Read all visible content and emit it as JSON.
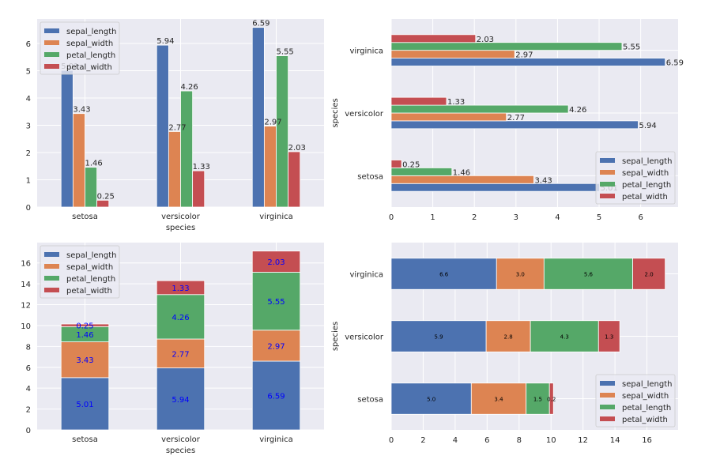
{
  "colors": {
    "sepal_length": "#4c72b0",
    "sepal_width": "#dd8452",
    "petal_length": "#55a868",
    "petal_width": "#c44e52",
    "axes_bg": "#eaeaf2",
    "grid": "#ffffff",
    "stack_label": "#0000ff"
  },
  "chart_data": [
    {
      "id": "grouped-vertical",
      "type": "bar",
      "orientation": "vertical",
      "stacked": false,
      "categories": [
        "setosa",
        "versicolor",
        "virginica"
      ],
      "series": [
        {
          "name": "sepal_length",
          "values": [
            5.01,
            5.94,
            6.59
          ]
        },
        {
          "name": "sepal_width",
          "values": [
            3.43,
            2.77,
            2.97
          ]
        },
        {
          "name": "petal_length",
          "values": [
            1.46,
            4.26,
            5.55
          ]
        },
        {
          "name": "petal_width",
          "values": [
            0.25,
            1.33,
            2.03
          ]
        }
      ],
      "value_labels": [
        [
          "5.01",
          "5.94",
          "6.59"
        ],
        [
          "3.43",
          "2.77",
          "2.97"
        ],
        [
          "1.46",
          "4.26",
          "5.55"
        ],
        [
          "0.25",
          "1.33",
          "2.03"
        ]
      ],
      "xlabel": "species",
      "ylabel": "",
      "ylim": [
        0,
        6.9
      ],
      "yticks": [
        0,
        1,
        2,
        3,
        4,
        5,
        6
      ],
      "grid": true,
      "legend": "top-left"
    },
    {
      "id": "grouped-horizontal",
      "type": "bar",
      "orientation": "horizontal",
      "stacked": false,
      "categories": [
        "setosa",
        "versicolor",
        "virginica"
      ],
      "series": [
        {
          "name": "sepal_length",
          "values": [
            5.01,
            5.94,
            6.59
          ]
        },
        {
          "name": "sepal_width",
          "values": [
            3.43,
            2.77,
            2.97
          ]
        },
        {
          "name": "petal_length",
          "values": [
            1.46,
            4.26,
            5.55
          ]
        },
        {
          "name": "petal_width",
          "values": [
            0.25,
            1.33,
            2.03
          ]
        }
      ],
      "value_labels": [
        [
          "5.01",
          "5.94",
          "6.59"
        ],
        [
          "3.43",
          "2.77",
          "2.97"
        ],
        [
          "1.46",
          "4.26",
          "5.55"
        ],
        [
          "0.25",
          "1.33",
          "2.03"
        ]
      ],
      "xlabel": "",
      "ylabel": "species",
      "xlim": [
        0,
        6.9
      ],
      "xticks": [
        0,
        1,
        2,
        3,
        4,
        5,
        6
      ],
      "grid": true,
      "legend": "bottom-right"
    },
    {
      "id": "stacked-vertical",
      "type": "bar",
      "orientation": "vertical",
      "stacked": true,
      "categories": [
        "setosa",
        "versicolor",
        "virginica"
      ],
      "series": [
        {
          "name": "sepal_length",
          "values": [
            5.01,
            5.94,
            6.59
          ]
        },
        {
          "name": "sepal_width",
          "values": [
            3.43,
            2.77,
            2.97
          ]
        },
        {
          "name": "petal_length",
          "values": [
            1.46,
            4.26,
            5.55
          ]
        },
        {
          "name": "petal_width",
          "values": [
            0.25,
            1.33,
            2.03
          ]
        }
      ],
      "value_labels": [
        [
          "5.01",
          "5.94",
          "6.59"
        ],
        [
          "3.43",
          "2.77",
          "2.97"
        ],
        [
          "1.46",
          "4.26",
          "5.55"
        ],
        [
          "0.25",
          "1.33",
          "2.03"
        ]
      ],
      "xlabel": "species",
      "ylabel": "",
      "ylim": [
        0,
        17.95
      ],
      "yticks": [
        0,
        2,
        4,
        6,
        8,
        10,
        12,
        14,
        16
      ],
      "grid": true,
      "legend": "top-left"
    },
    {
      "id": "stacked-horizontal",
      "type": "bar",
      "orientation": "horizontal",
      "stacked": true,
      "categories": [
        "setosa",
        "versicolor",
        "virginica"
      ],
      "series": [
        {
          "name": "sepal_length",
          "values": [
            5.01,
            5.94,
            6.59
          ]
        },
        {
          "name": "sepal_width",
          "values": [
            3.43,
            2.77,
            2.97
          ]
        },
        {
          "name": "petal_length",
          "values": [
            1.46,
            4.26,
            5.55
          ]
        },
        {
          "name": "petal_width",
          "values": [
            0.25,
            1.33,
            2.03
          ]
        }
      ],
      "value_labels": [
        [
          "5.0",
          "5.9",
          "6.6"
        ],
        [
          "3.4",
          "2.8",
          "3.0"
        ],
        [
          "1.5",
          "4.3",
          "5.6"
        ],
        [
          "0.2",
          "1.3",
          "2.0"
        ]
      ],
      "xlabel": "",
      "ylabel": "species",
      "xlim": [
        0,
        17.95
      ],
      "xticks": [
        0,
        2,
        4,
        6,
        8,
        10,
        12,
        14,
        16
      ],
      "grid": true,
      "legend": "bottom-right"
    }
  ]
}
